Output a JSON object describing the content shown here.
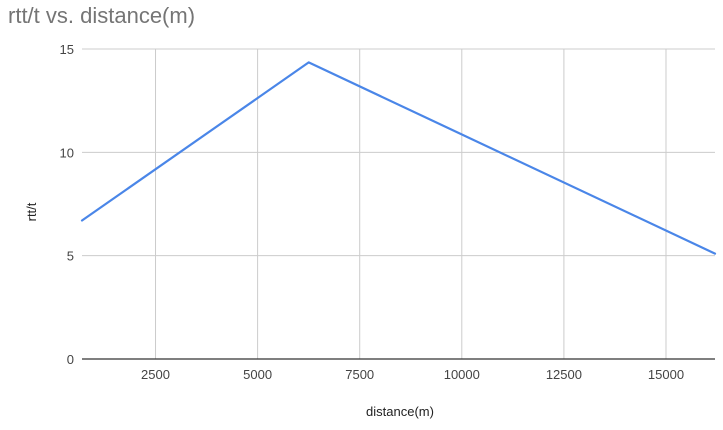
{
  "chart_data": {
    "type": "line",
    "title": "rtt/t vs. distance(m)",
    "xlabel": "distance(m)",
    "ylabel": "rtt/t",
    "xlim": [
      700,
      16200
    ],
    "ylim": [
      0,
      15
    ],
    "xticks": [
      2500,
      5000,
      7500,
      10000,
      12500,
      15000
    ],
    "yticks": [
      0,
      5,
      10,
      15
    ],
    "grid": true,
    "legend": "none",
    "series": [
      {
        "color": "#4a86e8",
        "points": [
          {
            "x": 700,
            "y": 6.7
          },
          {
            "x": 6250,
            "y": 14.35
          },
          {
            "x": 16200,
            "y": 5.1
          }
        ]
      }
    ]
  }
}
